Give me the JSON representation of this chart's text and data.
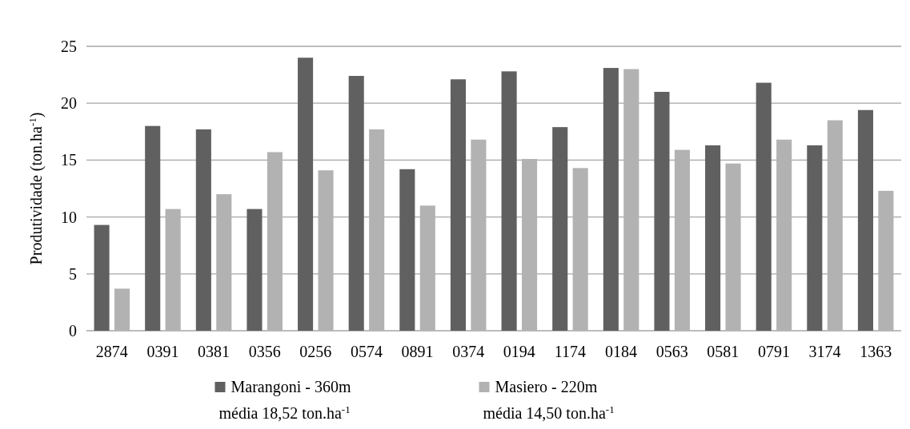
{
  "chart_data": {
    "type": "bar",
    "ylabel": "Produtividade (ton.ha$^{-1}$)",
    "categories": [
      "2874",
      "0391",
      "0381",
      "0356",
      "0256",
      "0574",
      "0891",
      "0374",
      "0194",
      "1174",
      "0184",
      "0563",
      "0581",
      "0791",
      "3174",
      "1363"
    ],
    "series": [
      {
        "name": "Marangoni - 360m",
        "color": "#606060",
        "values": [
          9.3,
          18,
          17.7,
          10.7,
          24,
          22.4,
          14.2,
          22.1,
          22.8,
          17.9,
          23.1,
          21,
          16.3,
          21.8,
          16.3,
          19.4
        ]
      },
      {
        "name": "Masiero - 220m",
        "color": "#b2b2b2",
        "values": [
          3.7,
          10.7,
          12,
          15.7,
          14.1,
          17.7,
          11,
          16.8,
          15.1,
          14.3,
          23,
          15.9,
          14.7,
          16.8,
          18.5,
          12.3
        ]
      }
    ],
    "ylim": [
      0,
      25
    ],
    "yticks": [
      0,
      5,
      10,
      15,
      20,
      25
    ],
    "grid": "y",
    "legend": "bottom",
    "annotations": [
      "média 18,52 ton.ha$^{-1}$",
      "média 14,50 ton.ha$^{-1}$"
    ]
  }
}
